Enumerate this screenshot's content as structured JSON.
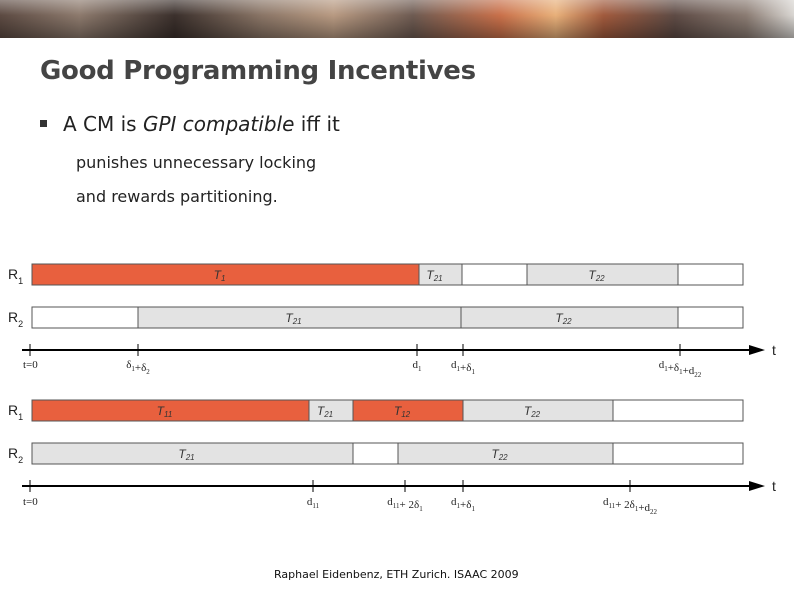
{
  "slide": {
    "title": "Good Programming Incentives",
    "bullet": {
      "prefix": "A CM is ",
      "em": "GPI compatible",
      "suffix": " iff it"
    },
    "sub1": "punishes unnecessary locking",
    "sub2": "and rewards partitioning.",
    "footer": "Raphael Eidenbenz, ETH Zurich. ISAAC 2009"
  },
  "colors": {
    "lock": "#e8603e",
    "grey": "#e3e3e3",
    "white": "#ffffff",
    "border": "#555555"
  },
  "diagram": {
    "axis_label": "t",
    "timelines": [
      {
        "rows": [
          {
            "label": "R",
            "sub": "1",
            "segments": [
              {
                "name": "T",
                "sub": "1",
                "fill": "lock"
              },
              {
                "name": "T",
                "sub": "21",
                "fill": "grey"
              },
              {
                "name": "",
                "sub": "",
                "fill": "white"
              },
              {
                "name": "T",
                "sub": "22",
                "fill": "grey"
              },
              {
                "name": "",
                "sub": "",
                "fill": "white"
              }
            ]
          },
          {
            "label": "R",
            "sub": "2",
            "segments": [
              {
                "name": "",
                "sub": "",
                "fill": "white"
              },
              {
                "name": "T",
                "sub": "21",
                "fill": "grey"
              },
              {
                "name": "T",
                "sub": "22",
                "fill": "grey"
              },
              {
                "name": "",
                "sub": "",
                "fill": "white"
              }
            ]
          }
        ],
        "ticks": [
          {
            "parts": [
              [
                "t=0",
                ""
              ]
            ]
          },
          {
            "parts": [
              [
                "δ",
                "1"
              ],
              [
                "+δ",
                "2"
              ]
            ]
          },
          {
            "parts": [
              [
                "d",
                "1"
              ]
            ]
          },
          {
            "parts": [
              [
                "d",
                "1"
              ],
              [
                "+δ",
                "1"
              ]
            ]
          },
          {
            "parts": [
              [
                "d",
                "1"
              ],
              [
                "+δ",
                "1"
              ],
              [
                "+d",
                "22"
              ]
            ]
          }
        ]
      },
      {
        "rows": [
          {
            "label": "R",
            "sub": "1",
            "segments": [
              {
                "name": "T",
                "sub": "11",
                "fill": "lock"
              },
              {
                "name": "T",
                "sub": "21",
                "fill": "grey"
              },
              {
                "name": "T",
                "sub": "12",
                "fill": "lock"
              },
              {
                "name": "T",
                "sub": "22",
                "fill": "grey"
              },
              {
                "name": "",
                "sub": "",
                "fill": "white"
              }
            ]
          },
          {
            "label": "R",
            "sub": "2",
            "segments": [
              {
                "name": "T",
                "sub": "21",
                "fill": "grey"
              },
              {
                "name": "",
                "sub": "",
                "fill": "white"
              },
              {
                "name": "T",
                "sub": "22",
                "fill": "grey"
              },
              {
                "name": "",
                "sub": "",
                "fill": "white"
              }
            ]
          }
        ],
        "ticks": [
          {
            "parts": [
              [
                "t=0",
                ""
              ]
            ]
          },
          {
            "parts": [
              [
                "d",
                "11"
              ]
            ]
          },
          {
            "parts": [
              [
                "d",
                "11"
              ],
              [
                "+ 2δ",
                "1"
              ]
            ]
          },
          {
            "parts": [
              [
                "d",
                "1"
              ],
              [
                "+δ",
                "1"
              ]
            ]
          },
          {
            "parts": [
              [
                "d",
                "11"
              ],
              [
                "+ 2δ",
                "1"
              ],
              [
                "+d",
                "22"
              ]
            ]
          }
        ]
      }
    ]
  }
}
